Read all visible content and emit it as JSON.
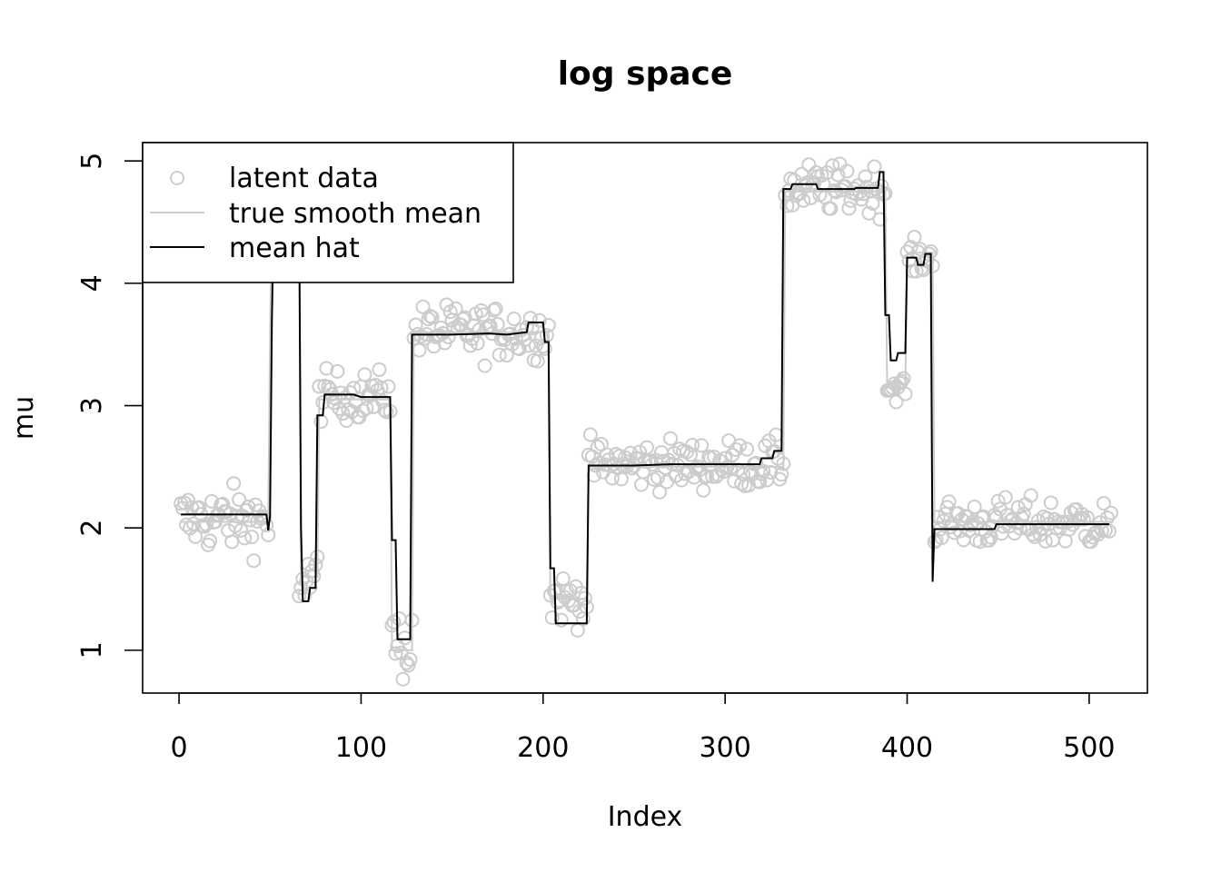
{
  "chart_data": {
    "type": "scatter",
    "title": "log space",
    "xlabel": "Index",
    "ylabel": "mu",
    "xlim": [
      -20,
      532
    ],
    "ylim": [
      0.65,
      5.15
    ],
    "xticks": [
      0,
      100,
      200,
      300,
      400,
      500
    ],
    "yticks": [
      1,
      2,
      3,
      4,
      5
    ],
    "xtick_labels": [
      "0",
      "100",
      "200",
      "300",
      "400",
      "500"
    ],
    "ytick_labels": [
      "1",
      "2",
      "3",
      "4",
      "5"
    ],
    "grid": false,
    "legend": {
      "position": "top-left",
      "entries": [
        {
          "label": "latent data",
          "style": "point",
          "color": "#cccccc"
        },
        {
          "label": "true smooth mean",
          "style": "line",
          "color": "#cccccc"
        },
        {
          "label": "mean hat",
          "style": "line",
          "color": "#000000"
        }
      ]
    },
    "colors": {
      "latent": "#cccccc",
      "true_mean": "#cccccc",
      "mean_hat": "#000000"
    },
    "series": [
      {
        "name": "latent data",
        "kind": "points",
        "n": 512,
        "segments": [
          {
            "start": 1,
            "end": 49,
            "center": 2.07,
            "spread": 0.13
          },
          {
            "start": 50,
            "end": 65,
            "center": 4.4,
            "spread": 0.3
          },
          {
            "start": 66,
            "end": 76,
            "center": 1.6,
            "spread": 0.12
          },
          {
            "start": 77,
            "end": 116,
            "center": 3.08,
            "spread": 0.1
          },
          {
            "start": 117,
            "end": 128,
            "center": 1.05,
            "spread": 0.15
          },
          {
            "start": 129,
            "end": 203,
            "center": 3.6,
            "spread": 0.11
          },
          {
            "start": 204,
            "end": 224,
            "center": 1.42,
            "spread": 0.1
          },
          {
            "start": 225,
            "end": 332,
            "center": 2.52,
            "spread": 0.1
          },
          {
            "start": 333,
            "end": 388,
            "center": 4.77,
            "spread": 0.1
          },
          {
            "start": 389,
            "end": 399,
            "center": 3.15,
            "spread": 0.05
          },
          {
            "start": 400,
            "end": 414,
            "center": 4.2,
            "spread": 0.07
          },
          {
            "start": 415,
            "end": 512,
            "center": 2.04,
            "spread": 0.1
          }
        ]
      },
      {
        "name": "true smooth mean",
        "kind": "step",
        "points": [
          [
            1,
            2.05
          ],
          [
            49,
            2.05
          ],
          [
            50,
            3.6
          ],
          [
            51,
            4.6
          ],
          [
            66,
            4.6
          ],
          [
            67,
            1.6
          ],
          [
            76,
            1.6
          ],
          [
            77,
            3.05
          ],
          [
            116,
            3.05
          ],
          [
            117,
            1.0
          ],
          [
            128,
            1.0
          ],
          [
            129,
            3.6
          ],
          [
            203,
            3.6
          ],
          [
            204,
            1.42
          ],
          [
            224,
            1.42
          ],
          [
            225,
            2.5
          ],
          [
            332,
            2.5
          ],
          [
            333,
            4.75
          ],
          [
            388,
            4.75
          ],
          [
            389,
            3.15
          ],
          [
            399,
            3.15
          ],
          [
            400,
            4.25
          ],
          [
            414,
            4.25
          ],
          [
            415,
            2.05
          ],
          [
            512,
            2.05
          ]
        ]
      },
      {
        "name": "mean hat",
        "kind": "step",
        "points": [
          [
            1,
            2.11
          ],
          [
            48,
            2.11
          ],
          [
            49,
            1.98
          ],
          [
            50,
            2.1
          ],
          [
            51,
            3.69
          ],
          [
            52,
            4.55
          ],
          [
            66,
            4.55
          ],
          [
            67,
            2.0
          ],
          [
            68,
            1.4
          ],
          [
            71,
            1.4
          ],
          [
            72,
            1.51
          ],
          [
            75,
            1.51
          ],
          [
            76,
            2.92
          ],
          [
            79,
            2.92
          ],
          [
            80,
            3.09
          ],
          [
            96,
            3.09
          ],
          [
            100,
            3.07
          ],
          [
            116,
            3.07
          ],
          [
            117,
            1.9
          ],
          [
            119,
            1.9
          ],
          [
            120,
            1.09
          ],
          [
            127,
            1.09
          ],
          [
            128,
            3.58
          ],
          [
            150,
            3.58
          ],
          [
            170,
            3.59
          ],
          [
            180,
            3.58
          ],
          [
            191,
            3.6
          ],
          [
            192,
            3.68
          ],
          [
            200,
            3.68
          ],
          [
            201,
            3.52
          ],
          [
            203,
            3.52
          ],
          [
            204,
            1.67
          ],
          [
            206,
            1.67
          ],
          [
            207,
            1.22
          ],
          [
            224,
            1.22
          ],
          [
            225,
            2.51
          ],
          [
            250,
            2.51
          ],
          [
            270,
            2.52
          ],
          [
            319,
            2.52
          ],
          [
            320,
            2.57
          ],
          [
            326,
            2.57
          ],
          [
            327,
            2.63
          ],
          [
            331,
            2.63
          ],
          [
            332,
            4.77
          ],
          [
            336,
            4.77
          ],
          [
            337,
            4.81
          ],
          [
            350,
            4.81
          ],
          [
            351,
            4.77
          ],
          [
            371,
            4.77
          ],
          [
            372,
            4.78
          ],
          [
            384,
            4.78
          ],
          [
            385,
            4.91
          ],
          [
            387,
            4.91
          ],
          [
            388,
            3.74
          ],
          [
            390,
            3.74
          ],
          [
            391,
            3.37
          ],
          [
            394,
            3.37
          ],
          [
            395,
            3.43
          ],
          [
            399,
            3.43
          ],
          [
            400,
            4.21
          ],
          [
            405,
            4.21
          ],
          [
            406,
            4.15
          ],
          [
            409,
            4.15
          ],
          [
            410,
            4.24
          ],
          [
            413,
            4.24
          ],
          [
            414,
            1.56
          ],
          [
            415,
            1.99
          ],
          [
            448,
            1.99
          ],
          [
            449,
            2.03
          ],
          [
            511,
            2.03
          ]
        ]
      }
    ]
  }
}
